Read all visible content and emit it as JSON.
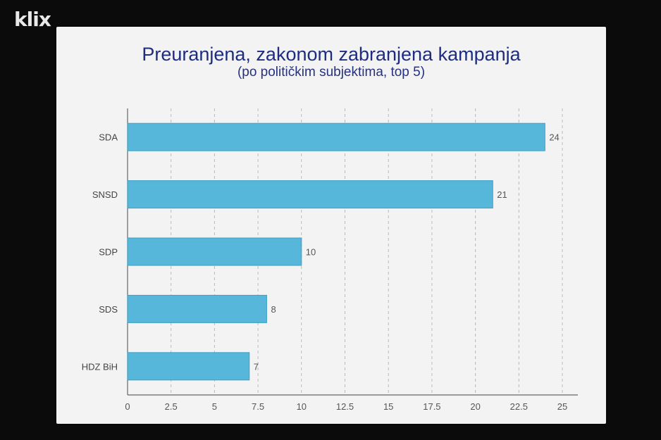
{
  "watermark": {
    "text": "klix"
  },
  "chart_data": {
    "type": "bar",
    "orientation": "horizontal",
    "title": "Preuranjena, zakonom zabranjena kampanja",
    "subtitle": "(po političkim subjektima, top 5)",
    "categories": [
      "SDA",
      "SNSD",
      "SDP",
      "SDS",
      "HDZ BiH"
    ],
    "values": [
      24,
      21,
      10,
      8,
      7
    ],
    "data_labels": [
      "24",
      "21",
      "10",
      "8",
      "7"
    ],
    "xlim": [
      0,
      25
    ],
    "x_ticks": [
      0,
      2.5,
      5,
      7.5,
      10,
      12.5,
      15,
      17.5,
      20,
      22.5,
      25
    ],
    "x_tick_labels": [
      "0",
      "2.5",
      "5",
      "7.5",
      "10",
      "12.5",
      "15",
      "17.5",
      "20",
      "22.5",
      "25"
    ],
    "grid": "vertical dashed",
    "bar_color": "#57b7db",
    "bar_border_color": "#3d9fc3"
  }
}
